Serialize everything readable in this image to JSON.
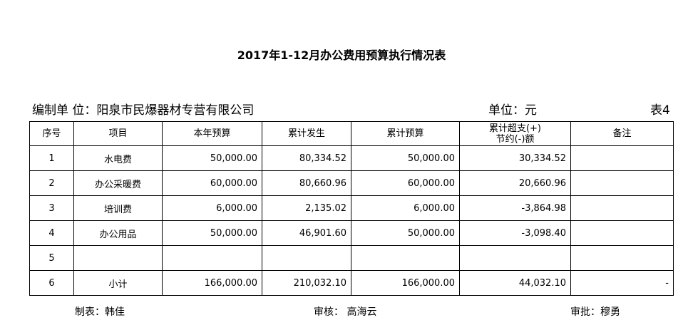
{
  "title": "2017年1-12月办公费用预算执行情况表",
  "org": "编制单 位：阳泉市民爆器材专营有限公司",
  "unit": "单位：元",
  "table_no": "表4",
  "columns": [
    "序号",
    "项目",
    "本年预算",
    "累计发生",
    "累计预算",
    "累计超支(+)",
    "节约(-)额",
    "备注"
  ],
  "rows": [
    {
      "no": "1",
      "item": "水电费",
      "budget": "50,000.00",
      "actual": "80,334.52",
      "cum_budget": "50,000.00",
      "diff": "30,334.52",
      "note": ""
    },
    {
      "no": "2",
      "item": "办公采暖费",
      "budget": "60,000.00",
      "actual": "80,660.96",
      "cum_budget": "60,000.00",
      "diff": "20,660.96",
      "note": ""
    },
    {
      "no": "3",
      "item": "培训费",
      "budget": "6,000.00",
      "actual": "2,135.02",
      "cum_budget": "6,000.00",
      "diff": "-3,864.98",
      "note": ""
    },
    {
      "no": "4",
      "item": "办公用品",
      "budget": "50,000.00",
      "actual": "46,901.60",
      "cum_budget": "50,000.00",
      "diff": "-3,098.40",
      "note": ""
    },
    {
      "no": "5",
      "item": "",
      "budget": "",
      "actual": "",
      "cum_budget": "",
      "diff": "",
      "note": ""
    },
    {
      "no": "6",
      "item": "小计",
      "budget": "166,000.00",
      "actual": "210,032.10",
      "cum_budget": "166,000.00",
      "diff": "44,032.10",
      "note": "-"
    }
  ],
  "footer": {
    "maker": "制表：韩佳",
    "reviewer": "审核： 高海云",
    "approver": "审批：穆勇"
  }
}
